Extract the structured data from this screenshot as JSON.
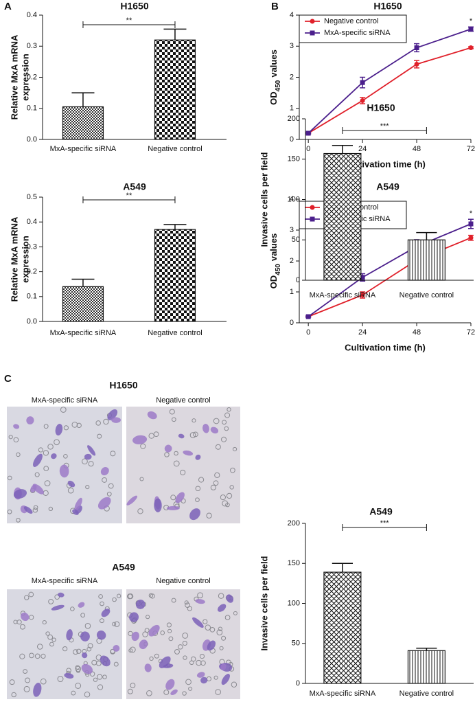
{
  "chart_data": [
    {
      "type": "bar",
      "panel": "A",
      "title": "H1650",
      "ylabel": [
        "Relative MxA mRNA",
        "expression"
      ],
      "categories": [
        "MxA-specific siRNA",
        "Negative control"
      ],
      "values": [
        0.105,
        0.32
      ],
      "errors": [
        0.045,
        0.035
      ],
      "patterns": [
        "checker-fine",
        "checker-coarse"
      ],
      "significance": "**",
      "ylim": [
        0,
        0.4
      ],
      "yticks": [
        {
          "value": 0,
          "label": "0.0"
        },
        0.1,
        0.2,
        0.3,
        0.4
      ]
    },
    {
      "type": "bar",
      "title": "A549",
      "ylabel": [
        "Relative MxA mRNA",
        "expression"
      ],
      "categories": [
        "MxA-specific siRNA",
        "Negative control"
      ],
      "values": [
        0.14,
        0.37
      ],
      "errors": [
        0.03,
        0.02
      ],
      "patterns": [
        "checker-fine",
        "checker-coarse"
      ],
      "significance": "**",
      "ylim": [
        0,
        0.5
      ],
      "yticks": [
        {
          "value": 0,
          "label": "0.0"
        },
        0.1,
        0.2,
        0.3,
        0.4,
        0.5
      ]
    },
    {
      "type": "line",
      "panel": "B",
      "title": "H1650",
      "ylabel": "OD",
      "ylabel_subscript": "450",
      "ylabel_suffix": "values",
      "xlabel": "Cultivation time (h)",
      "x": [
        0,
        24,
        48,
        72
      ],
      "annotation": "*",
      "series": [
        {
          "name": "Negative control",
          "color": "#e0202a",
          "marker": "circle",
          "values": [
            0.2,
            1.25,
            2.42,
            2.95
          ],
          "errors": [
            0.02,
            0.1,
            0.12,
            0.03
          ]
        },
        {
          "name": "MxA-specific siRNA",
          "color": "#4b1f8c",
          "marker": "square",
          "values": [
            0.2,
            1.83,
            2.95,
            3.55
          ],
          "errors": [
            0.02,
            0.17,
            0.13,
            0.07
          ]
        }
      ],
      "xlim": [
        -4,
        72
      ],
      "xticks": [
        0,
        24,
        48,
        72
      ],
      "ylim": [
        0,
        4
      ],
      "yticks": [
        0,
        1,
        2,
        3,
        4
      ]
    },
    {
      "type": "line",
      "title": "A549",
      "ylabel": "OD",
      "ylabel_subscript": "450",
      "ylabel_suffix": "values",
      "xlabel": "Cultivation time (h)",
      "x": [
        0,
        24,
        48,
        72
      ],
      "annotation": "*",
      "series": [
        {
          "name": "Negative control",
          "color": "#e0202a",
          "marker": "circle",
          "values": [
            0.2,
            0.9,
            2.03,
            2.75
          ],
          "errors": [
            0.02,
            0.1,
            0.03,
            0.08
          ]
        },
        {
          "name": "MxA-specific siRNA",
          "color": "#4b1f8c",
          "marker": "square",
          "values": [
            0.2,
            1.47,
            2.47,
            3.2
          ],
          "errors": [
            0.02,
            0.12,
            0.22,
            0.15
          ]
        }
      ],
      "xlim": [
        -4,
        72
      ],
      "xticks": [
        0,
        24,
        48,
        72
      ],
      "ylim": [
        0,
        4
      ],
      "yticks": [
        0,
        1,
        2,
        3,
        4
      ]
    },
    {
      "type": "bar",
      "title": "H1650",
      "ylabel": [
        "Invasive cells per field"
      ],
      "categories": [
        "MxA-specific siRNA",
        "Negative control"
      ],
      "values": [
        157,
        50
      ],
      "errors": [
        10,
        9
      ],
      "patterns": [
        "crosshatch",
        "vlines"
      ],
      "significance": "***",
      "ylim": [
        0,
        200
      ],
      "yticks": [
        0,
        50,
        100,
        150,
        200
      ]
    },
    {
      "type": "bar",
      "title": "A549",
      "ylabel": [
        "Invasive cells per field"
      ],
      "categories": [
        "MxA-specific siRNA",
        "Negative control"
      ],
      "values": [
        139,
        41
      ],
      "errors": [
        11,
        3
      ],
      "patterns": [
        "crosshatch",
        "vlines"
      ],
      "significance": "***",
      "ylim": [
        0,
        200
      ],
      "yticks": [
        0,
        50,
        100,
        150,
        200
      ]
    }
  ],
  "micrographs": {
    "panel": "C",
    "groups": [
      {
        "title": "H1650",
        "labels": [
          "MxA-specific siRNA",
          "Negative control"
        ]
      },
      {
        "title": "A549",
        "labels": [
          "MxA-specific siRNA",
          "Negative control"
        ]
      }
    ]
  }
}
